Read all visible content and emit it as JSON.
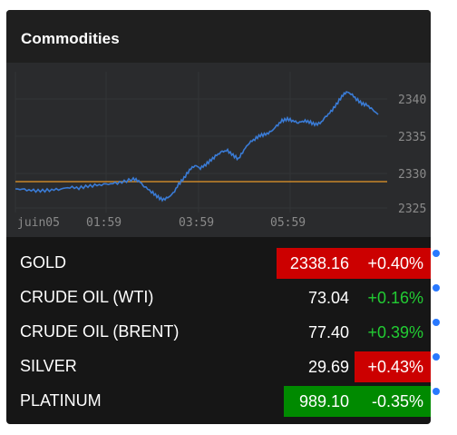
{
  "header": {
    "title": "Commodities"
  },
  "chart": {
    "y_ticks": [
      "2340",
      "2335",
      "2330",
      "2325"
    ],
    "x_ticks": [
      "juin05",
      "01:59",
      "03:59",
      "05:59"
    ],
    "reference_line_color": "#c8862a",
    "series_color": "#3a7bd5",
    "grid_color": "#333436",
    "axis_text_color": "#8a8a8a"
  },
  "rows": [
    {
      "name": "GOLD",
      "price": "2338.16",
      "change": "+0.40%",
      "price_bg": "#cc0000",
      "change_bg": "#cc0000",
      "change_color": "#ffffff",
      "dot_color": "#2979ff"
    },
    {
      "name": "CRUDE OIL (WTI)",
      "price": "73.04",
      "change": "+0.16%",
      "price_bg": "",
      "change_bg": "",
      "change_color": "#22cc33",
      "dot_color": "#2979ff"
    },
    {
      "name": "CRUDE OIL (BRENT)",
      "price": "77.40",
      "change": "+0.39%",
      "price_bg": "",
      "change_bg": "",
      "change_color": "#22cc33",
      "dot_color": "#2979ff"
    },
    {
      "name": "SILVER",
      "price": "29.69",
      "change": "+0.43%",
      "price_bg": "",
      "change_bg": "#cc0000",
      "change_color": "#ffffff",
      "dot_color": "#2979ff"
    },
    {
      "name": "PLATINUM",
      "price": "989.10",
      "change": "-0.35%",
      "price_bg": "#008a00",
      "change_bg": "#008a00",
      "change_color": "#ffffff",
      "dot_color": "#2979ff"
    }
  ]
}
